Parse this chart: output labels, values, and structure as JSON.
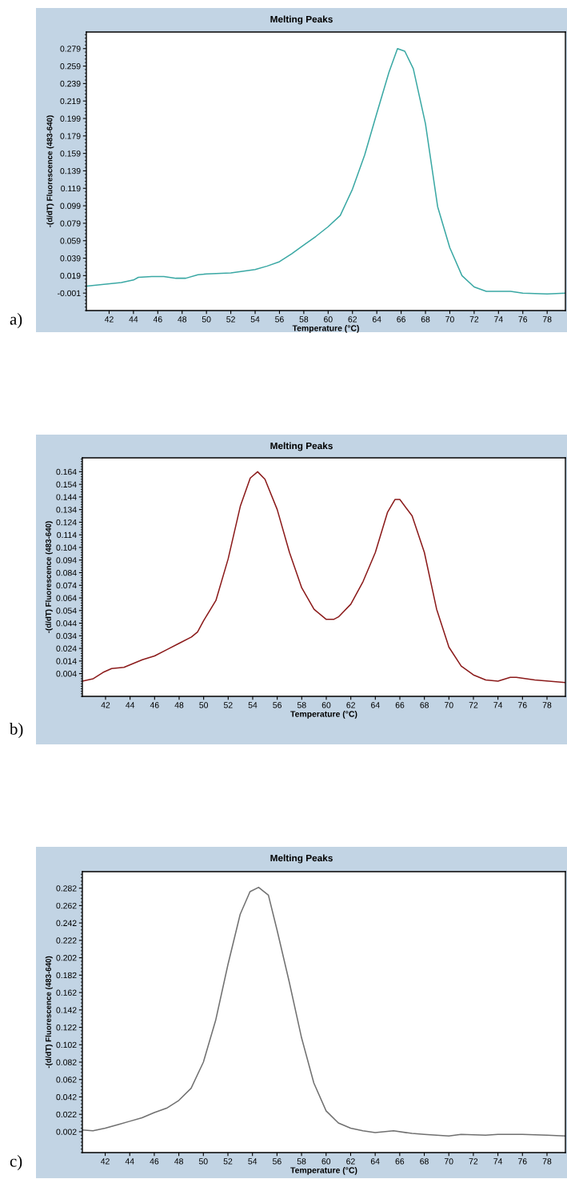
{
  "chart_data": [
    {
      "type": "line",
      "title": "Melting Peaks",
      "xlabel": "Temperature (°C)",
      "ylabel": "-(d/dT) Fluorescence (483-640)",
      "annotations": [
        "a)"
      ],
      "grid": false,
      "xlim": [
        40.13,
        79.5
      ],
      "xticks": [
        42,
        44,
        46,
        48,
        50,
        52,
        54,
        56,
        58,
        60,
        62,
        64,
        66,
        68,
        70,
        72,
        74,
        76,
        78
      ],
      "ylim": [
        -0.021,
        0.298
      ],
      "yticks": [
        -0.001,
        0.019,
        0.039,
        0.059,
        0.079,
        0.099,
        0.119,
        0.139,
        0.159,
        0.179,
        0.199,
        0.219,
        0.239,
        0.259,
        0.279
      ],
      "series": [
        {
          "color": "#3aa8a4",
          "x": [
            40.13,
            43,
            44,
            44.4,
            45.5,
            46.5,
            47.5,
            48.3,
            49.3,
            50,
            52,
            54,
            55,
            56,
            57,
            58,
            59,
            60,
            61,
            62,
            63,
            64,
            65,
            65.7,
            66.3,
            67,
            68,
            69,
            70,
            71,
            72,
            73,
            75,
            76,
            78,
            79.5
          ],
          "values": [
            0.007,
            0.011,
            0.014,
            0.017,
            0.018,
            0.018,
            0.016,
            0.016,
            0.02,
            0.021,
            0.022,
            0.026,
            0.03,
            0.035,
            0.044,
            0.054,
            0.064,
            0.075,
            0.088,
            0.118,
            0.157,
            0.205,
            0.252,
            0.279,
            0.276,
            0.256,
            0.193,
            0.098,
            0.051,
            0.019,
            0.006,
            0.001,
            0.001,
            -0.001,
            -0.002,
            -0.001
          ]
        }
      ]
    },
    {
      "type": "line",
      "title": "Melting Peaks",
      "xlabel": "Temperature (°C)",
      "ylabel": "-(d/dT) Fluorescence (483-640)",
      "annotations": [
        "b)"
      ],
      "grid": false,
      "xlim": [
        40.11,
        79.5
      ],
      "xticks": [
        42,
        44,
        46,
        48,
        50,
        52,
        54,
        56,
        58,
        60,
        62,
        64,
        66,
        68,
        70,
        72,
        74,
        76,
        78
      ],
      "ylim": [
        -0.014,
        0.175
      ],
      "yticks": [
        0.004,
        0.014,
        0.024,
        0.034,
        0.044,
        0.054,
        0.064,
        0.074,
        0.084,
        0.094,
        0.104,
        0.114,
        0.124,
        0.134,
        0.144,
        0.154,
        0.164
      ],
      "series": [
        {
          "color": "#8b1a1a",
          "x": [
            40.11,
            41,
            41.8,
            42.5,
            43.5,
            45,
            46,
            47,
            48,
            49,
            49.5,
            50,
            51,
            52,
            53,
            53.8,
            54.4,
            55,
            56,
            57,
            58,
            59,
            60,
            60.6,
            61,
            62,
            63,
            64,
            65,
            65.6,
            66,
            67,
            68,
            69,
            70,
            71,
            72,
            73,
            74,
            75,
            75.5,
            77,
            79.5
          ],
          "values": [
            -0.002,
            0.0,
            0.005,
            0.008,
            0.009,
            0.015,
            0.018,
            0.023,
            0.028,
            0.033,
            0.037,
            0.046,
            0.062,
            0.095,
            0.137,
            0.159,
            0.164,
            0.158,
            0.134,
            0.1,
            0.072,
            0.055,
            0.047,
            0.047,
            0.049,
            0.059,
            0.077,
            0.1,
            0.132,
            0.142,
            0.142,
            0.129,
            0.1,
            0.055,
            0.025,
            0.01,
            0.003,
            -0.001,
            -0.002,
            0.001,
            0.001,
            -0.001,
            -0.003
          ]
        }
      ]
    },
    {
      "type": "line",
      "title": "Melting Peaks",
      "xlabel": "Temperature (°C)",
      "ylabel": "-(d/dT) Fluorescence (483-640)",
      "annotations": [
        "c)"
      ],
      "grid": false,
      "xlim": [
        40.14,
        79.5
      ],
      "xticks": [
        42,
        44,
        46,
        48,
        50,
        52,
        54,
        56,
        58,
        60,
        62,
        64,
        66,
        68,
        70,
        72,
        74,
        76,
        78
      ],
      "ylim": [
        -0.022,
        0.301
      ],
      "yticks": [
        0.002,
        0.022,
        0.042,
        0.062,
        0.082,
        0.102,
        0.122,
        0.142,
        0.162,
        0.182,
        0.202,
        0.222,
        0.242,
        0.262,
        0.282
      ],
      "series": [
        {
          "color": "#707070",
          "x": [
            40.14,
            41,
            42,
            43,
            44,
            45,
            46,
            47,
            48,
            49,
            50,
            51,
            52,
            53,
            53.8,
            54.5,
            55.3,
            56,
            57,
            58,
            59,
            60,
            61,
            62,
            63,
            64,
            65.5,
            67,
            68,
            70,
            71,
            73,
            74,
            76,
            78,
            79.5
          ],
          "values": [
            0.004,
            0.003,
            0.006,
            0.01,
            0.014,
            0.018,
            0.024,
            0.029,
            0.038,
            0.052,
            0.082,
            0.13,
            0.194,
            0.252,
            0.278,
            0.283,
            0.274,
            0.234,
            0.174,
            0.11,
            0.058,
            0.026,
            0.012,
            0.006,
            0.003,
            0.001,
            0.003,
            0.0,
            -0.001,
            -0.003,
            -0.001,
            -0.002,
            -0.001,
            -0.001,
            -0.002,
            -0.003
          ]
        }
      ]
    }
  ]
}
